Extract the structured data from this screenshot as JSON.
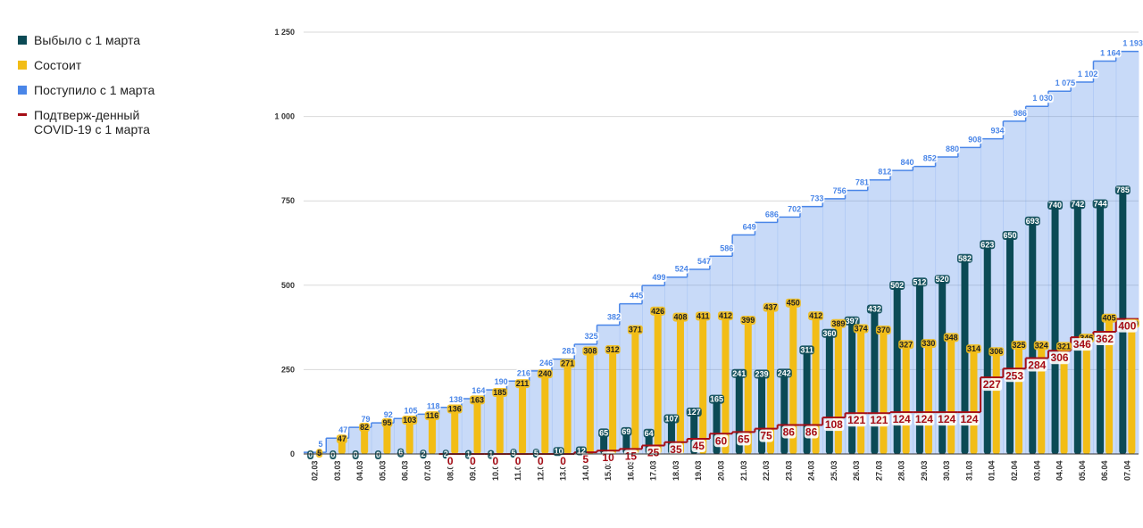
{
  "chart_data": {
    "type": "bar",
    "categories": [
      "02.03",
      "03.03",
      "04.03",
      "05.03",
      "06.03",
      "07.03",
      "08.03",
      "09.03",
      "10.03",
      "11.03",
      "12.03",
      "13.03",
      "14.03",
      "15.03",
      "16.03",
      "17.03",
      "18.03",
      "19.03",
      "20.03",
      "21.03",
      "22.03",
      "23.03",
      "24.03",
      "25.03",
      "26.03",
      "27.03",
      "28.03",
      "29.03",
      "30.03",
      "31.03",
      "01.04",
      "02.04",
      "03.04",
      "04.04",
      "05.04",
      "06.04",
      "07.04"
    ],
    "series": [
      {
        "name": "Выбыло с 1 марта",
        "color": "#0b4a55",
        "kind": "bar",
        "values": [
          0,
          0,
          0,
          0,
          6,
          2,
          2,
          1,
          1,
          5,
          5,
          10,
          12,
          65,
          69,
          64,
          107,
          127,
          165,
          241,
          239,
          242,
          311,
          360,
          397,
          432,
          502,
          512,
          520,
          582,
          623,
          650,
          693,
          740,
          742,
          744,
          785
        ]
      },
      {
        "name": "Состоит",
        "color": "#f2bd16",
        "kind": "bar",
        "values": [
          5,
          47,
          82,
          95,
          103,
          116,
          136,
          163,
          185,
          211,
          240,
          271,
          308,
          312,
          371,
          426,
          408,
          411,
          412,
          399,
          437,
          450,
          412,
          389,
          374,
          370,
          327,
          330,
          348,
          314,
          306,
          325,
          324,
          321,
          346,
          405,
          389
        ]
      },
      {
        "name": "Поступило с 1 марта",
        "color": "#4a86e8",
        "kind": "area",
        "values": [
          5,
          47,
          79,
          92,
          105,
          118,
          138,
          164,
          190,
          216,
          246,
          281,
          325,
          382,
          445,
          499,
          524,
          547,
          586,
          649,
          686,
          702,
          733,
          756,
          781,
          812,
          840,
          852,
          880,
          908,
          934,
          986,
          1030,
          1075,
          1102,
          1164,
          1193
        ],
        "value_labels": [
          "5",
          "47",
          "79",
          "92",
          "105",
          "118",
          "138",
          "164",
          "190",
          "216",
          "246",
          "281",
          "325",
          "382",
          "445",
          "499",
          "524",
          "547",
          "586",
          "649",
          "686",
          "702",
          "733",
          "756",
          "781",
          "812",
          "840",
          "852",
          "880",
          "908",
          "934",
          "986",
          "1 030",
          "1 075",
          "1 102",
          "1 164",
          "1 193"
        ]
      },
      {
        "name": "Подтверж-денный COVID-19 с 1 марта",
        "color": "#a50d16",
        "kind": "line",
        "values": [
          null,
          null,
          null,
          null,
          null,
          null,
          0,
          0,
          0,
          0,
          0,
          0,
          5,
          10,
          15,
          25,
          35,
          45,
          60,
          65,
          75,
          86,
          86,
          108,
          121,
          121,
          124,
          124,
          124,
          124,
          227,
          253,
          284,
          306,
          346,
          362,
          400
        ]
      }
    ],
    "ylim": [
      0,
      1250
    ],
    "yticks": [
      0,
      250,
      500,
      750,
      {
        "value": 1000,
        "label": "1 000"
      },
      {
        "value": 1250,
        "label": "1 250"
      }
    ],
    "grid": true,
    "legend": "left"
  }
}
